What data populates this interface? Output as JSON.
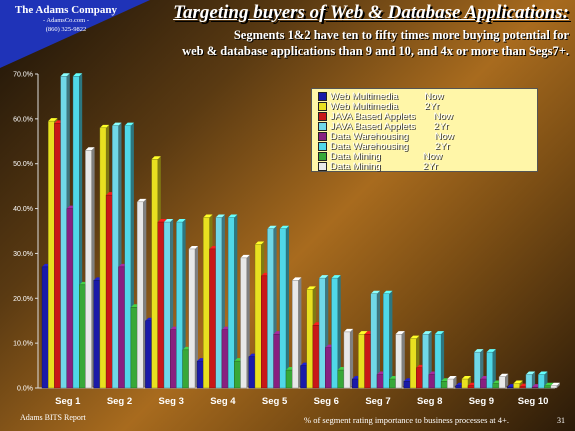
{
  "company": {
    "name": "The Adams Company",
    "line2": "- AdamsCo.com -",
    "line3": "(860) 325-9822"
  },
  "title": "Targeting buyers of Web & Database Applications:",
  "subtitle_line1": "Segments 1&2 have ten to fifty times more buying potential  for",
  "subtitle_line2": "web & database applications than 9 and 10, and 4x or more  than Segs7+.",
  "footer_left": "Adams BITS Report",
  "footer_right": "% of segment rating importance to business processes at 4+.",
  "page_number": "31",
  "chart_data": {
    "type": "bar",
    "categories": [
      "Seg 1",
      "Seg 2",
      "Seg 3",
      "Seg 4",
      "Seg 5",
      "Seg 6",
      "Seg 7",
      "Seg 8",
      "Seg 9",
      "Seg 10"
    ],
    "ylim": [
      0,
      70
    ],
    "yticks": [
      "0.0%",
      "10.0%",
      "20.0%",
      "30.0%",
      "40.0%",
      "50.0%",
      "60.0%",
      "70.0%"
    ],
    "grid": false,
    "legend_position": "top-right",
    "series": [
      {
        "name": "Web Multimedia          Now",
        "color": "#1a1aa8",
        "values": [
          27,
          24,
          15,
          6,
          7,
          5,
          2,
          1.5,
          0.5,
          0.2
        ]
      },
      {
        "name": "Web Multimedia          2Yr",
        "color": "#e8e020",
        "values": [
          59.5,
          58,
          51,
          38,
          32,
          22,
          12,
          11,
          2,
          1
        ]
      },
      {
        "name": "JAVA Based Applets       Now",
        "color": "#c81818",
        "values": [
          59,
          43,
          37,
          31,
          25,
          14,
          12,
          4.5,
          0.5,
          0.3
        ]
      },
      {
        "name": "JAVA Based Applets       2Yr",
        "color": "#70d8e8",
        "values": [
          69.5,
          58.5,
          37,
          38,
          35.5,
          24.5,
          21,
          12,
          8,
          3
        ]
      },
      {
        "name": "Data Warehousing          Now",
        "color": "#882080",
        "values": [
          40,
          27,
          13,
          13,
          12,
          9,
          3,
          3,
          2,
          0.2
        ]
      },
      {
        "name": "Data Warehousing          2Yr",
        "color": "#50d8e8",
        "values": [
          69.5,
          58.5,
          37,
          38,
          35.5,
          24.5,
          21,
          12,
          8,
          3
        ]
      },
      {
        "name": "Data Mining                Now",
        "color": "#38a838",
        "values": [
          23,
          18,
          8.5,
          6,
          4,
          4,
          2,
          1.5,
          1,
          0.5
        ]
      },
      {
        "name": "Data Mining                2Yr",
        "color": "#e8e8e8",
        "values": [
          53,
          41.5,
          31,
          29,
          24,
          12.5,
          12,
          2,
          2.5,
          0.5
        ]
      }
    ]
  }
}
